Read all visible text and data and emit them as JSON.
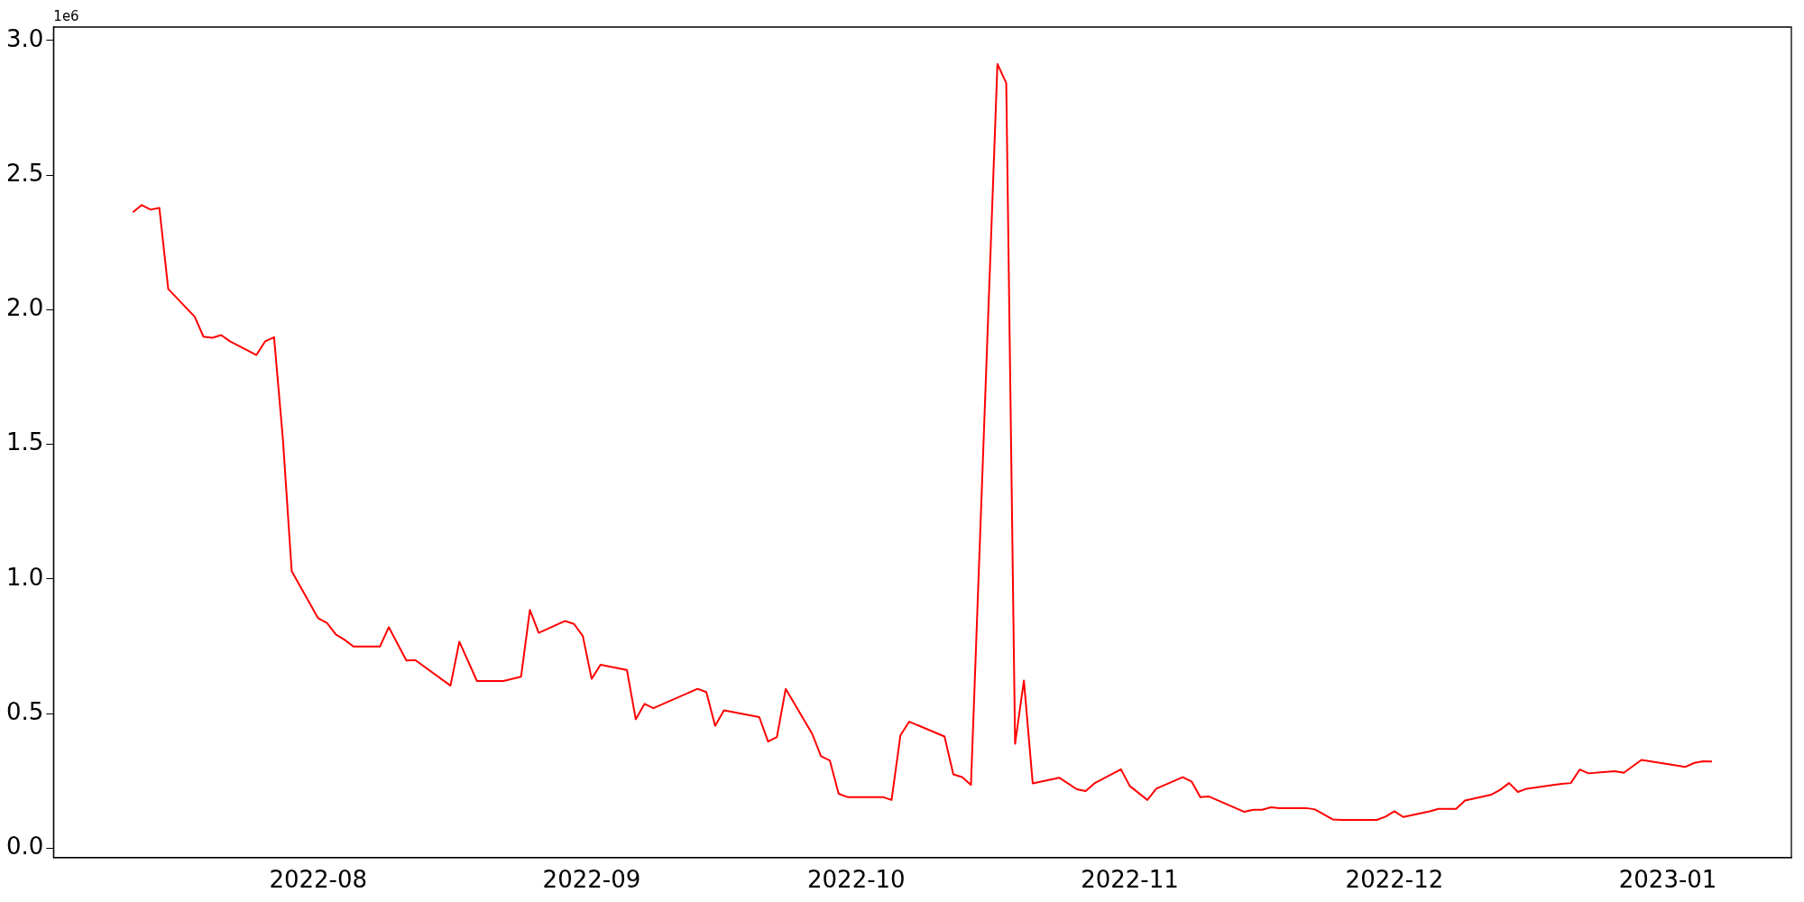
{
  "chart_data": {
    "type": "line",
    "x": [
      "2022-07-11",
      "2022-07-12",
      "2022-07-13",
      "2022-07-14",
      "2022-07-15",
      "2022-07-18",
      "2022-07-19",
      "2022-07-20",
      "2022-07-21",
      "2022-07-22",
      "2022-07-25",
      "2022-07-26",
      "2022-07-27",
      "2022-07-28",
      "2022-07-29",
      "2022-08-01",
      "2022-08-02",
      "2022-08-03",
      "2022-08-04",
      "2022-08-05",
      "2022-08-08",
      "2022-08-09",
      "2022-08-10",
      "2022-08-11",
      "2022-08-12",
      "2022-08-16",
      "2022-08-17",
      "2022-08-19",
      "2022-08-22",
      "2022-08-24",
      "2022-08-25",
      "2022-08-26",
      "2022-08-29",
      "2022-08-30",
      "2022-08-31",
      "2022-09-01",
      "2022-09-02",
      "2022-09-05",
      "2022-09-06",
      "2022-09-07",
      "2022-09-08",
      "2022-09-13",
      "2022-09-14",
      "2022-09-15",
      "2022-09-16",
      "2022-09-20",
      "2022-09-21",
      "2022-09-22",
      "2022-09-23",
      "2022-09-26",
      "2022-09-27",
      "2022-09-28",
      "2022-09-29",
      "2022-09-30",
      "2022-10-04",
      "2022-10-05",
      "2022-10-06",
      "2022-10-07",
      "2022-10-11",
      "2022-10-12",
      "2022-10-13",
      "2022-10-14",
      "2022-10-17",
      "2022-10-18",
      "2022-10-19",
      "2022-10-20",
      "2022-10-21",
      "2022-10-24",
      "2022-10-26",
      "2022-10-27",
      "2022-10-28",
      "2022-10-31",
      "2022-11-01",
      "2022-11-03",
      "2022-11-04",
      "2022-11-07",
      "2022-11-08",
      "2022-11-09",
      "2022-11-10",
      "2022-11-14",
      "2022-11-15",
      "2022-11-16",
      "2022-11-17",
      "2022-11-18",
      "2022-11-21",
      "2022-11-22",
      "2022-11-24",
      "2022-11-25",
      "2022-11-29",
      "2022-11-30",
      "2022-12-01",
      "2022-12-02",
      "2022-12-05",
      "2022-12-06",
      "2022-12-08",
      "2022-12-09",
      "2022-12-12",
      "2022-12-13",
      "2022-12-14",
      "2022-12-15",
      "2022-12-16",
      "2022-12-19",
      "2022-12-20",
      "2022-12-21",
      "2022-12-22",
      "2022-12-23",
      "2022-12-26",
      "2022-12-27",
      "2022-12-29",
      "2023-01-03",
      "2023-01-04",
      "2023-01-05",
      "2023-01-06"
    ],
    "series": [
      {
        "color": "#ff0000",
        "values": [
          2.362,
          2.389,
          2.372,
          2.378,
          2.077,
          1.974,
          1.9,
          1.896,
          1.906,
          1.883,
          1.832,
          1.883,
          1.898,
          1.52,
          1.029,
          0.854,
          0.837,
          0.794,
          0.774,
          0.749,
          0.749,
          0.821,
          0.759,
          0.697,
          0.699,
          0.604,
          0.767,
          0.621,
          0.621,
          0.637,
          0.885,
          0.8,
          0.844,
          0.833,
          0.788,
          0.629,
          0.681,
          0.662,
          0.479,
          0.536,
          0.52,
          0.592,
          0.58,
          0.454,
          0.512,
          0.487,
          0.396,
          0.413,
          0.592,
          0.425,
          0.342,
          0.326,
          0.202,
          0.19,
          0.19,
          0.179,
          0.419,
          0.47,
          0.415,
          0.274,
          0.264,
          0.235,
          2.913,
          2.842,
          0.388,
          0.623,
          0.241,
          0.262,
          0.219,
          0.212,
          0.241,
          0.293,
          0.231,
          0.179,
          0.221,
          0.264,
          0.248,
          0.19,
          0.192,
          0.135,
          0.143,
          0.143,
          0.152,
          0.149,
          0.149,
          0.144,
          0.107,
          0.105,
          0.105,
          0.117,
          0.137,
          0.116,
          0.137,
          0.146,
          0.146,
          0.177,
          0.199,
          0.217,
          0.242,
          0.209,
          0.221,
          0.235,
          0.239,
          0.242,
          0.292,
          0.278,
          0.286,
          0.28,
          0.328,
          0.302,
          0.317,
          0.323,
          0.322
        ]
      }
    ],
    "xlim": [
      "2022-07-02",
      "2023-01-15"
    ],
    "xticks": [
      "2022-08",
      "2022-09",
      "2022-10",
      "2022-11",
      "2022-12",
      "2023-01"
    ],
    "ylim": [
      -0.035,
      3.05
    ],
    "yticks": [
      {
        "value": 0,
        "label": "0.0"
      },
      {
        "value": 0.5,
        "label": "0.5"
      },
      {
        "value": 1,
        "label": "1.0"
      },
      {
        "value": 1.5,
        "label": "1.5"
      },
      {
        "value": 2,
        "label": "2.0"
      },
      {
        "value": 2.5,
        "label": "2.5"
      },
      {
        "value": 3,
        "label": "3.0"
      }
    ],
    "annotations": [
      "1e6"
    ],
    "grid": false,
    "legend": false,
    "marker": "none",
    "line_style": "solid"
  }
}
